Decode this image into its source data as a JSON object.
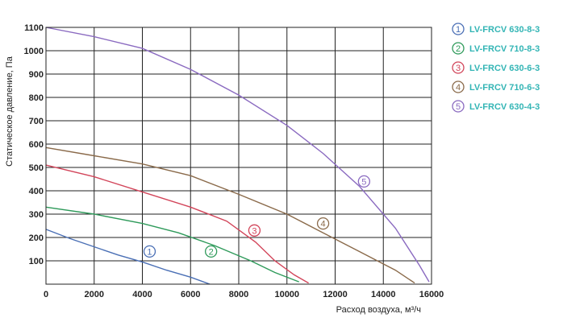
{
  "chart_data": {
    "type": "line",
    "xlabel": "Расход воздуха, м³/ч",
    "ylabel": "Статическое давление, Па",
    "xlim": [
      0,
      16000
    ],
    "ylim": [
      0,
      1100
    ],
    "x_ticks": [
      "0",
      "2000",
      "4000",
      "6000",
      "8000",
      "10000",
      "12000",
      "14000",
      "16000"
    ],
    "y_ticks": [
      "100",
      "200",
      "300",
      "400",
      "500",
      "600",
      "700",
      "800",
      "900",
      "1000",
      "1100"
    ],
    "grid": true,
    "legend_position": "top-right",
    "series": [
      {
        "name": "LV-FRCV 630-8-3",
        "marker": "1",
        "color": "#4a6fb5",
        "points": [
          [
            0,
            235
          ],
          [
            1000,
            195
          ],
          [
            2000,
            160
          ],
          [
            3000,
            125
          ],
          [
            4000,
            95
          ],
          [
            5000,
            60
          ],
          [
            6000,
            30
          ],
          [
            6800,
            0
          ]
        ],
        "label_at": [
          4300,
          140
        ]
      },
      {
        "name": "LV-FRCV 710-8-3",
        "marker": "2",
        "color": "#2e9a5a",
        "points": [
          [
            0,
            330
          ],
          [
            2000,
            300
          ],
          [
            4000,
            260
          ],
          [
            5500,
            220
          ],
          [
            7000,
            165
          ],
          [
            8500,
            100
          ],
          [
            9500,
            50
          ],
          [
            10500,
            10
          ]
        ],
        "label_at": [
          6850,
          140
        ]
      },
      {
        "name": "LV-FRCV 630-6-3",
        "marker": "3",
        "color": "#d2455a",
        "points": [
          [
            0,
            510
          ],
          [
            2000,
            460
          ],
          [
            4000,
            395
          ],
          [
            6000,
            330
          ],
          [
            7500,
            270
          ],
          [
            8700,
            180
          ],
          [
            9500,
            100
          ],
          [
            10300,
            40
          ],
          [
            10900,
            5
          ]
        ],
        "label_at": [
          8650,
          230
        ]
      },
      {
        "name": "LV-FRCV 710-6-3",
        "marker": "4",
        "color": "#8a6a4a",
        "points": [
          [
            0,
            585
          ],
          [
            2000,
            550
          ],
          [
            4000,
            515
          ],
          [
            6000,
            465
          ],
          [
            8000,
            385
          ],
          [
            10000,
            300
          ],
          [
            11500,
            220
          ],
          [
            13000,
            140
          ],
          [
            14500,
            60
          ],
          [
            15300,
            5
          ]
        ],
        "label_at": [
          11500,
          260
        ]
      },
      {
        "name": "LV-FRCV 630-4-3",
        "marker": "5",
        "color": "#8a6ac0",
        "points": [
          [
            0,
            1100
          ],
          [
            2000,
            1060
          ],
          [
            4000,
            1010
          ],
          [
            6000,
            920
          ],
          [
            8000,
            810
          ],
          [
            10000,
            680
          ],
          [
            11500,
            560
          ],
          [
            13000,
            420
          ],
          [
            14500,
            240
          ],
          [
            15500,
            80
          ],
          [
            15900,
            10
          ]
        ],
        "label_at": [
          13200,
          440
        ]
      }
    ]
  }
}
